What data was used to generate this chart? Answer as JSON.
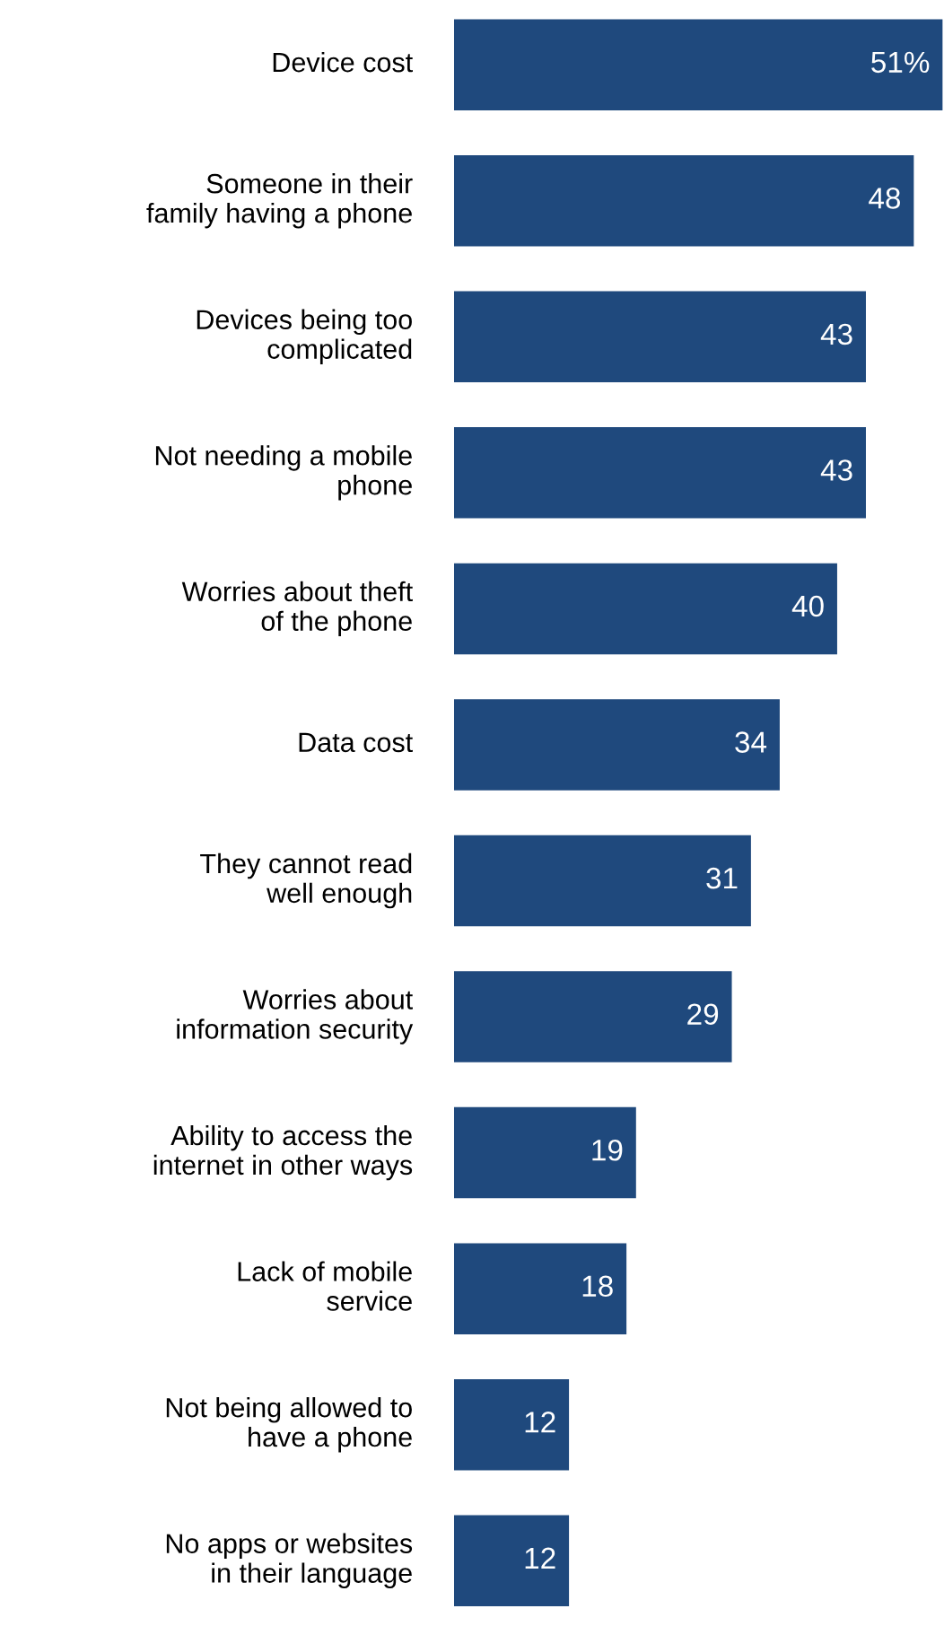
{
  "chart_data": {
    "type": "bar",
    "orientation": "horizontal",
    "categories": [
      "Device cost",
      "Someone in their\nfamily having a phone",
      "Devices being too\ncomplicated",
      "Not needing a mobile\nphone",
      "Worries about theft\nof the phone",
      "Data cost",
      "They cannot read\nwell enough",
      "Worries about\ninformation security",
      "Ability to access the\ninternet in other ways",
      "Lack of mobile\nservice",
      "Not being allowed to\nhave a phone",
      "No apps or websites\nin their language"
    ],
    "values": [
      51,
      48,
      43,
      43,
      40,
      34,
      31,
      29,
      19,
      18,
      12,
      12
    ],
    "value_labels": [
      "51%",
      "48",
      "43",
      "43",
      "40",
      "34",
      "31",
      "29",
      "19",
      "18",
      "12",
      "12"
    ],
    "color": "#1f497d"
  }
}
